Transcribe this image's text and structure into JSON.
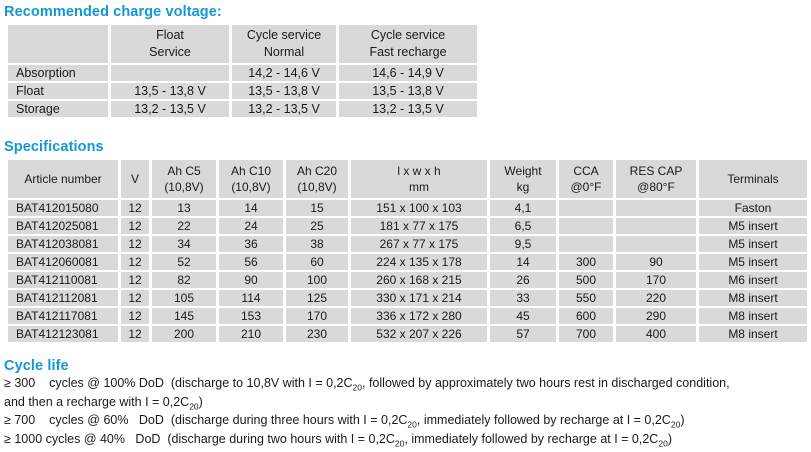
{
  "colors": {
    "accent": "#1397d5",
    "table_bg": "#d9d9d9",
    "text": "#1a1a1a"
  },
  "charge_section": {
    "title": "Recommended charge voltage:",
    "table": {
      "col_headers": [
        {
          "line1": "Float",
          "line2": "Service"
        },
        {
          "line1": "Cycle service",
          "line2": "Normal"
        },
        {
          "line1": "Cycle service",
          "line2": "Fast recharge"
        }
      ],
      "rows": [
        {
          "label": "Absorption",
          "values": [
            "",
            "14,2 - 14,6 V",
            "14,6 - 14,9 V"
          ]
        },
        {
          "label": "Float",
          "values": [
            "13,5 - 13,8 V",
            "13,5 - 13,8 V",
            "13,5 - 13,8 V"
          ]
        },
        {
          "label": "Storage",
          "values": [
            "13,2 - 13,5 V",
            "13,2 - 13,5 V",
            "13,2 - 13,5 V"
          ]
        }
      ]
    }
  },
  "specs_section": {
    "title": "Specifications",
    "table": {
      "headers": [
        {
          "line1": "Article number",
          "line2": ""
        },
        {
          "line1": "V",
          "line2": ""
        },
        {
          "line1": "Ah C5",
          "line2": "(10,8V)"
        },
        {
          "line1": "Ah C10",
          "line2": "(10,8V)"
        },
        {
          "line1": "Ah C20",
          "line2": "(10,8V)"
        },
        {
          "line1": "l x w x h",
          "line2": "mm"
        },
        {
          "line1": "Weight",
          "line2": "kg"
        },
        {
          "line1": "CCA",
          "line2": "@0°F"
        },
        {
          "line1": "RES CAP",
          "line2": "@80°F"
        },
        {
          "line1": "Terminals",
          "line2": ""
        }
      ],
      "rows": [
        [
          "BAT412015080",
          "12",
          "13",
          "14",
          "15",
          "151 x 100 x 103",
          "4,1",
          "",
          "",
          "Faston"
        ],
        [
          "BAT412025081",
          "12",
          "22",
          "24",
          "25",
          "181 x 77 x 175",
          "6,5",
          "",
          "",
          "M5 insert"
        ],
        [
          "BAT412038081",
          "12",
          "34",
          "36",
          "38",
          "267 x 77 x 175",
          "9,5",
          "",
          "",
          "M5 insert"
        ],
        [
          "BAT412060081",
          "12",
          "52",
          "56",
          "60",
          "224 x 135 x 178",
          "14",
          "300",
          "90",
          "M5 insert"
        ],
        [
          "BAT412110081",
          "12",
          "82",
          "90",
          "100",
          "260 x 168 x 215",
          "26",
          "500",
          "170",
          "M6 insert"
        ],
        [
          "BAT412112081",
          "12",
          "105",
          "114",
          "125",
          "330 x 171 x 214",
          "33",
          "550",
          "220",
          "M8 insert"
        ],
        [
          "BAT412117081",
          "12",
          "145",
          "153",
          "170",
          "336 x 172 x 280",
          "45",
          "600",
          "290",
          "M8 insert"
        ],
        [
          "BAT412123081",
          "12",
          "200",
          "210",
          "230",
          "532 x 207 x 226",
          "57",
          "700",
          "400",
          "M8 insert"
        ]
      ]
    }
  },
  "cycle_life": {
    "title": "Cycle life",
    "lines": [
      {
        "segments": [
          {
            "text": "≥ 300    cycles @ 100% DoD  (discharge to 10,8V with I = 0,2C",
            "sub": false
          },
          {
            "text": "20",
            "sub": true
          },
          {
            "text": ", followed by approximately two hours rest in discharged condition,",
            "sub": false
          }
        ]
      },
      {
        "segments": [
          {
            "text": "and then a recharge with I = 0,2C",
            "sub": false
          },
          {
            "text": "20",
            "sub": true
          },
          {
            "text": ")",
            "sub": false
          }
        ]
      },
      {
        "segments": [
          {
            "text": "≥ 700    cycles @ 60%   DoD  (discharge during three hours with I = 0,2C",
            "sub": false
          },
          {
            "text": "20",
            "sub": true
          },
          {
            "text": ", immediately followed by recharge at I = 0,2C",
            "sub": false
          },
          {
            "text": "20",
            "sub": true
          },
          {
            "text": ")",
            "sub": false
          }
        ]
      },
      {
        "segments": [
          {
            "text": "≥ 1000 cycles @ 40%   DoD  (discharge during two hours with I = 0,2C",
            "sub": false
          },
          {
            "text": "20",
            "sub": true
          },
          {
            "text": ", immediately followed by recharge at I = 0,2C",
            "sub": false
          },
          {
            "text": "20",
            "sub": true
          },
          {
            "text": ")",
            "sub": false
          }
        ]
      }
    ]
  }
}
